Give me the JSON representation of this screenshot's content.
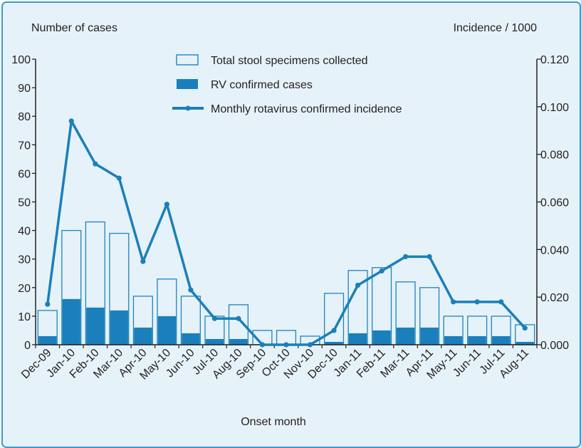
{
  "chart_data": {
    "type": "bar",
    "categories": [
      "Dec-09",
      "Jan-10",
      "Feb-10",
      "Mar-10",
      "Apr-10",
      "May-10",
      "Jun-10",
      "Jul-10",
      "Aug-10",
      "Sep-10",
      "Oct-10",
      "Nov-10",
      "Dec-10",
      "Jan-11",
      "Feb-11",
      "Mar-11",
      "Apr-11",
      "May-11",
      "Jun-11",
      "Jul-11",
      "Aug-11"
    ],
    "series": [
      {
        "name": "Total stool specimens collected",
        "kind": "bar",
        "axis": "left",
        "values": [
          12,
          40,
          43,
          39,
          17,
          23,
          17,
          10,
          14,
          5,
          5,
          3,
          18,
          26,
          27,
          22,
          20,
          10,
          10,
          10,
          7
        ]
      },
      {
        "name": "RV confirmed cases",
        "kind": "bar",
        "axis": "left",
        "values": [
          3,
          16,
          13,
          12,
          6,
          10,
          4,
          2,
          2,
          0,
          0,
          0,
          1,
          4,
          5,
          6,
          6,
          3,
          3,
          3,
          1
        ]
      },
      {
        "name": "Monthly rotavirus confirmed incidence",
        "kind": "line",
        "axis": "right",
        "values": [
          0.017,
          0.094,
          0.076,
          0.07,
          0.035,
          0.059,
          0.023,
          0.011,
          0.011,
          0.0,
          0.0,
          0.0,
          0.006,
          0.025,
          0.031,
          0.037,
          0.037,
          0.018,
          0.018,
          0.018,
          0.007
        ]
      }
    ],
    "xlabel": "Onset month",
    "ylabel": "Number of cases",
    "y2label": "Incidence / 1000",
    "ylim": [
      0,
      100
    ],
    "y2lim": [
      0,
      0.12
    ],
    "yticks": [
      "0",
      "10",
      "20",
      "30",
      "40",
      "50",
      "60",
      "70",
      "80",
      "90",
      "100"
    ],
    "y2ticks": [
      "0.000",
      "0.020",
      "0.040",
      "0.060",
      "0.080",
      "0.100",
      "0.120"
    ],
    "legend_position": "top-center",
    "colors": {
      "bar_total_fill": "#e6f2f9",
      "bar_edge": "#1f84bd",
      "bar_confirmed": "#1a7fba",
      "line": "#1a7fba",
      "axis": "#231f20",
      "background": "#e6f2f9",
      "border": "#3a9bd0"
    }
  }
}
